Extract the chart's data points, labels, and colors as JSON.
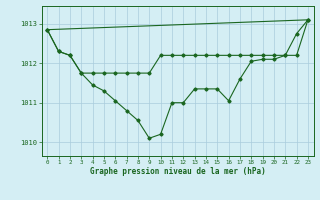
{
  "line1_y": [
    1012.85,
    1012.3,
    1012.2,
    1011.75,
    1011.45,
    1011.3,
    1011.05,
    1010.8,
    1010.55,
    1010.1,
    1010.2,
    1011.0,
    1011.0,
    1011.35,
    1011.35,
    1011.35,
    1011.05,
    1011.6,
    1012.05,
    1012.1,
    1012.1,
    1012.2,
    1012.75,
    1013.1
  ],
  "line2_y": [
    1012.85,
    1012.3,
    1012.2,
    1011.75,
    1011.75,
    1011.75,
    1011.75,
    1011.75,
    1011.75,
    1011.75,
    1012.2,
    1012.2,
    1012.2,
    1012.2,
    1012.2,
    1012.2,
    1012.2,
    1012.2,
    1012.2,
    1012.2,
    1012.2,
    1012.2,
    1012.2,
    1013.1
  ],
  "line3_y": [
    1012.85,
    1013.1
  ],
  "line3_x": [
    0,
    23
  ],
  "background_color": "#d4eef4",
  "grid_color": "#aaccdd",
  "line_color": "#1a6620",
  "title": "Graphe pression niveau de la mer (hPa)",
  "yticks": [
    1010,
    1011,
    1012,
    1013
  ],
  "ylim": [
    1009.65,
    1013.45
  ],
  "xlim": [
    -0.5,
    23.5
  ]
}
